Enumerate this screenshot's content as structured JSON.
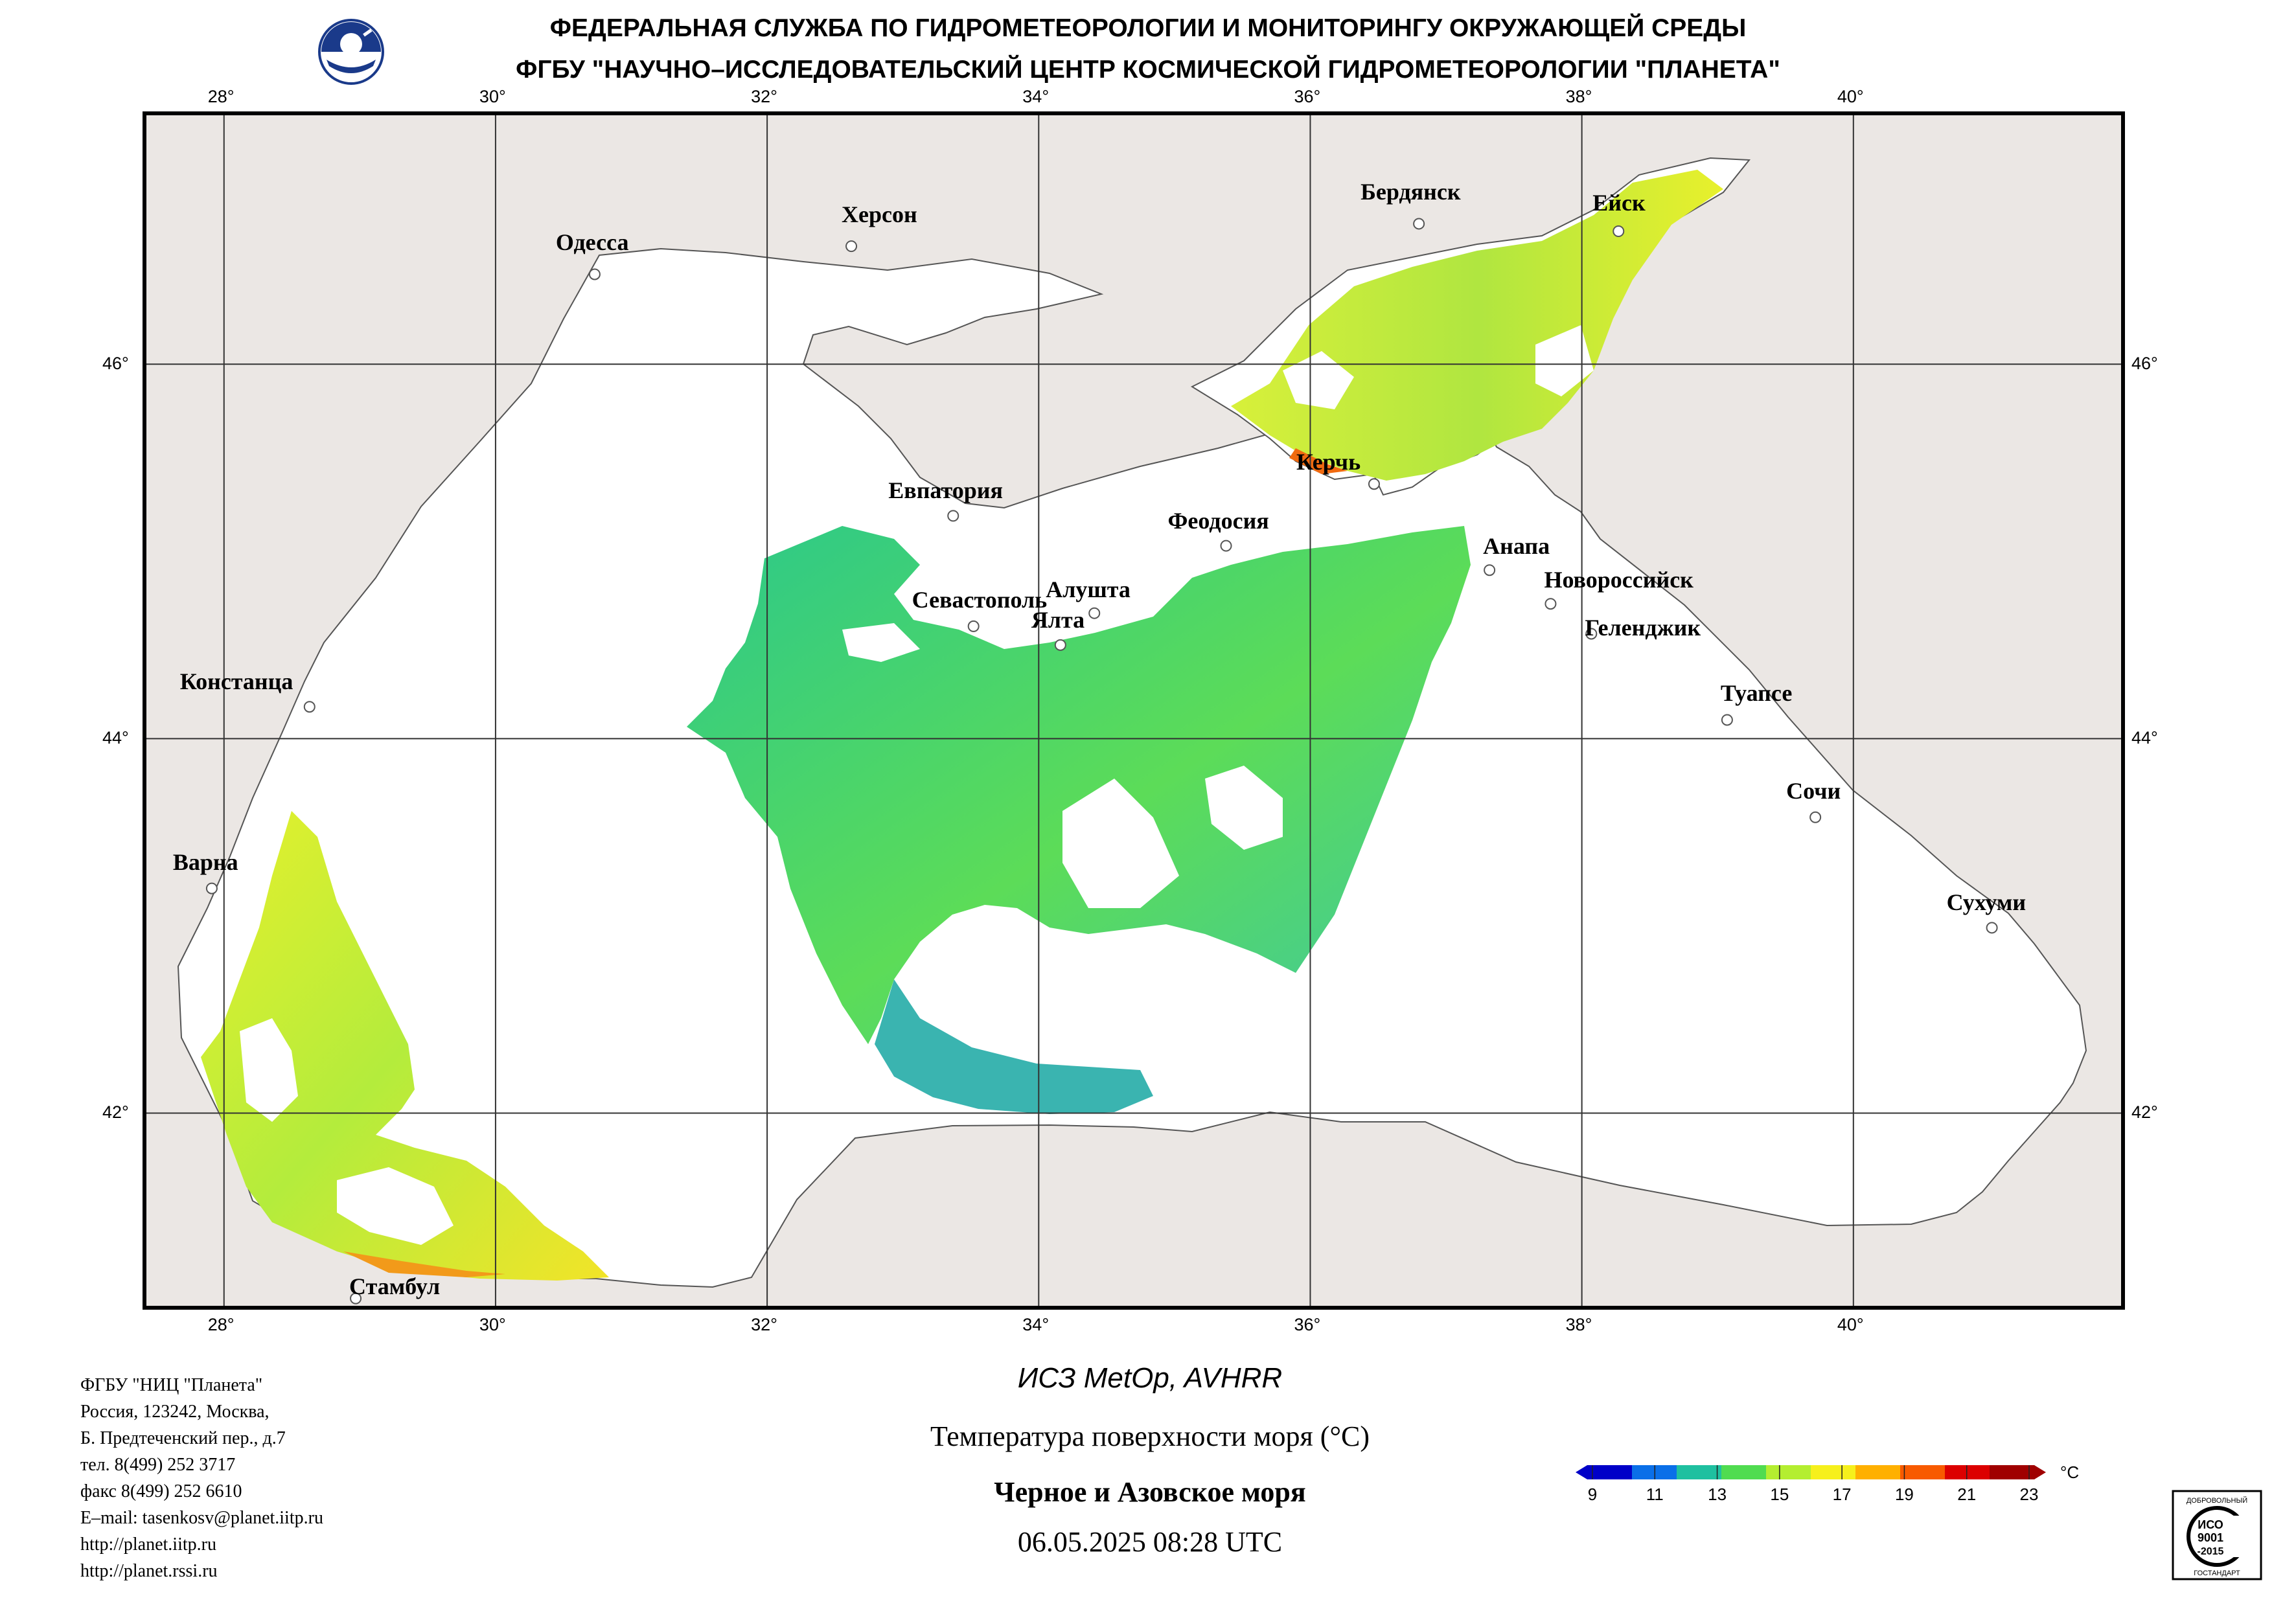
{
  "header": {
    "line1": "ФЕДЕРАЛЬНАЯ СЛУЖБА ПО ГИДРОМЕТЕОРОЛОГИИ И МОНИТОРИНГУ ОКРУЖАЮЩЕЙ СРЕДЫ",
    "line2": "ФГБУ \"НАУЧНО–ИССЛЕДОВАТЕЛЬСКИЙ ЦЕНТР КОСМИЧЕСКОЙ ГИДРОМЕТЕОРОЛОГИИ \"ПЛАНЕТА\""
  },
  "map": {
    "lon_ticks": [
      "28°",
      "30°",
      "32°",
      "34°",
      "36°",
      "38°",
      "40°"
    ],
    "lat_ticks": [
      "46°",
      "44°",
      "42°"
    ],
    "lon_range": [
      27.4,
      42.0
    ],
    "lat_range": [
      40.95,
      47.35
    ],
    "colors": {
      "land": "#ebe7e4",
      "sea": "#ffffff",
      "grid": "#333333",
      "border": "#555555"
    },
    "cities": [
      {
        "name": "Одесса",
        "lon": 30.73,
        "lat": 46.48
      },
      {
        "name": "Херсон",
        "lon": 32.62,
        "lat": 46.63
      },
      {
        "name": "Бердянск",
        "lon": 36.8,
        "lat": 46.75
      },
      {
        "name": "Ейск",
        "lon": 38.27,
        "lat": 46.71
      },
      {
        "name": "Евпатория",
        "lon": 33.37,
        "lat": 45.19
      },
      {
        "name": "Керчь",
        "lon": 36.47,
        "lat": 45.36
      },
      {
        "name": "Феодосия",
        "lon": 35.38,
        "lat": 45.03
      },
      {
        "name": "Анапа",
        "lon": 37.32,
        "lat": 44.9
      },
      {
        "name": "Новороссийск",
        "lon": 37.77,
        "lat": 44.72
      },
      {
        "name": "Геленджик",
        "lon": 38.07,
        "lat": 44.56
      },
      {
        "name": "Севастополь",
        "lon": 33.52,
        "lat": 44.6
      },
      {
        "name": "Алушта",
        "lon": 34.41,
        "lat": 44.67
      },
      {
        "name": "Ялта",
        "lon": 34.16,
        "lat": 44.5
      },
      {
        "name": "Констанца",
        "lon": 28.63,
        "lat": 44.17
      },
      {
        "name": "Туапсе",
        "lon": 39.07,
        "lat": 44.1
      },
      {
        "name": "Сочи",
        "lon": 39.72,
        "lat": 43.58
      },
      {
        "name": "Варна",
        "lon": 27.91,
        "lat": 43.2
      },
      {
        "name": "Сухуми",
        "lon": 41.02,
        "lat": 42.99
      },
      {
        "name": "Стамбул",
        "lon": 28.97,
        "lat": 41.01
      }
    ]
  },
  "legend": {
    "unit": "°C",
    "ticks": [
      "9",
      "11",
      "13",
      "15",
      "17",
      "19",
      "21",
      "23"
    ],
    "colors": [
      "#0000c8",
      "#0a6fe8",
      "#1fc0a0",
      "#50dc50",
      "#b4ee30",
      "#f6f01c",
      "#ffb000",
      "#f85a00",
      "#dc0000",
      "#a00000"
    ]
  },
  "footer": {
    "org_lines": [
      "ФГБУ \"НИЦ \"Планета\"",
      "Россия, 123242, Москва,",
      "Б. Предтеченский пер., д.7",
      "тел. 8(499) 252 3717",
      "факс 8(499) 252 6610",
      "E–mail: tasenkosv@planet.iitp.ru",
      "http://planet.iitp.ru",
      "http://planet.rssi.ru"
    ],
    "satellite": "ИСЗ MetOp, AVHRR",
    "parameter": "Температура поверхности моря (°C)",
    "region": "Черное и Азовское моря",
    "datetime": "06.05.2025 08:28 UTC"
  },
  "iso_badge": {
    "top": "ДОБРОВОЛЬНЫЙ",
    "l1": "ИСО",
    "l2": "9001",
    "l3": "-2015",
    "bottom": "ГОСТАНДАРТ"
  }
}
